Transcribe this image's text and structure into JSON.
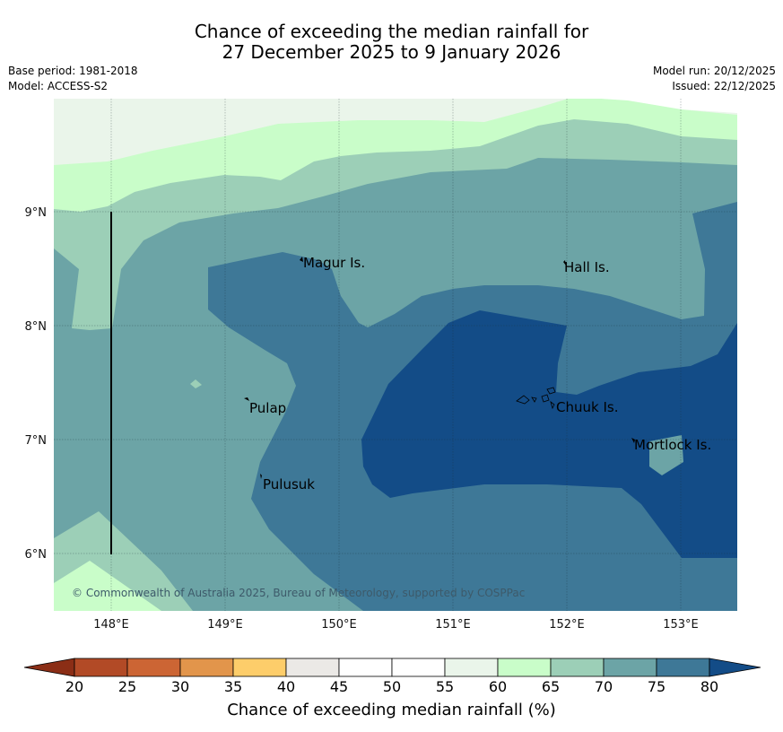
{
  "title": {
    "line1": "Chance of exceeding the median rainfall for",
    "line2": "27 December 2025 to 9 January 2026"
  },
  "meta_left": {
    "base_period": "Base period: 1981-2018",
    "model": "Model: ACCESS-S2"
  },
  "meta_right": {
    "model_run": "Model run: 20/12/2025",
    "issued": "Issued: 22/12/2025"
  },
  "axes": {
    "lat_labels": [
      "9°N",
      "8°N",
      "7°N",
      "6°N"
    ],
    "lon_labels": [
      "148°E",
      "149°E",
      "150°E",
      "151°E",
      "152°E",
      "153°E"
    ]
  },
  "places": [
    {
      "name": "Magur Is."
    },
    {
      "name": "Hall Is."
    },
    {
      "name": "Pulap"
    },
    {
      "name": "Chuuk Is."
    },
    {
      "name": "Mortlock Is."
    },
    {
      "name": "Pulusuk"
    }
  ],
  "copyright": "© Commonwealth of Australia 2025, Bureau of Meteorology, supported by COSPPac",
  "colorbar": {
    "title": "Chance of exceeding median rainfall (%)",
    "ticks": [
      "20",
      "25",
      "30",
      "35",
      "40",
      "45",
      "50",
      "55",
      "60",
      "65",
      "70",
      "75",
      "80"
    ],
    "colors": [
      "#8b2e16",
      "#b24a26",
      "#cc6534",
      "#e2954b",
      "#fdcd6a",
      "#ebe9e6",
      "#ffffff",
      "#ffffff",
      "#eaf5ea",
      "#c9fdc9",
      "#9ccfb7",
      "#6ca4a6",
      "#3e7897",
      "#134c87"
    ]
  },
  "colors": {
    "band_55_60": "#eaf5ea",
    "band_60_65": "#c9fdc9",
    "band_65_70": "#9ccfb7",
    "band_70_75": "#6ca4a6",
    "band_75_80": "#3e7897",
    "band_80_plus": "#134c87"
  }
}
